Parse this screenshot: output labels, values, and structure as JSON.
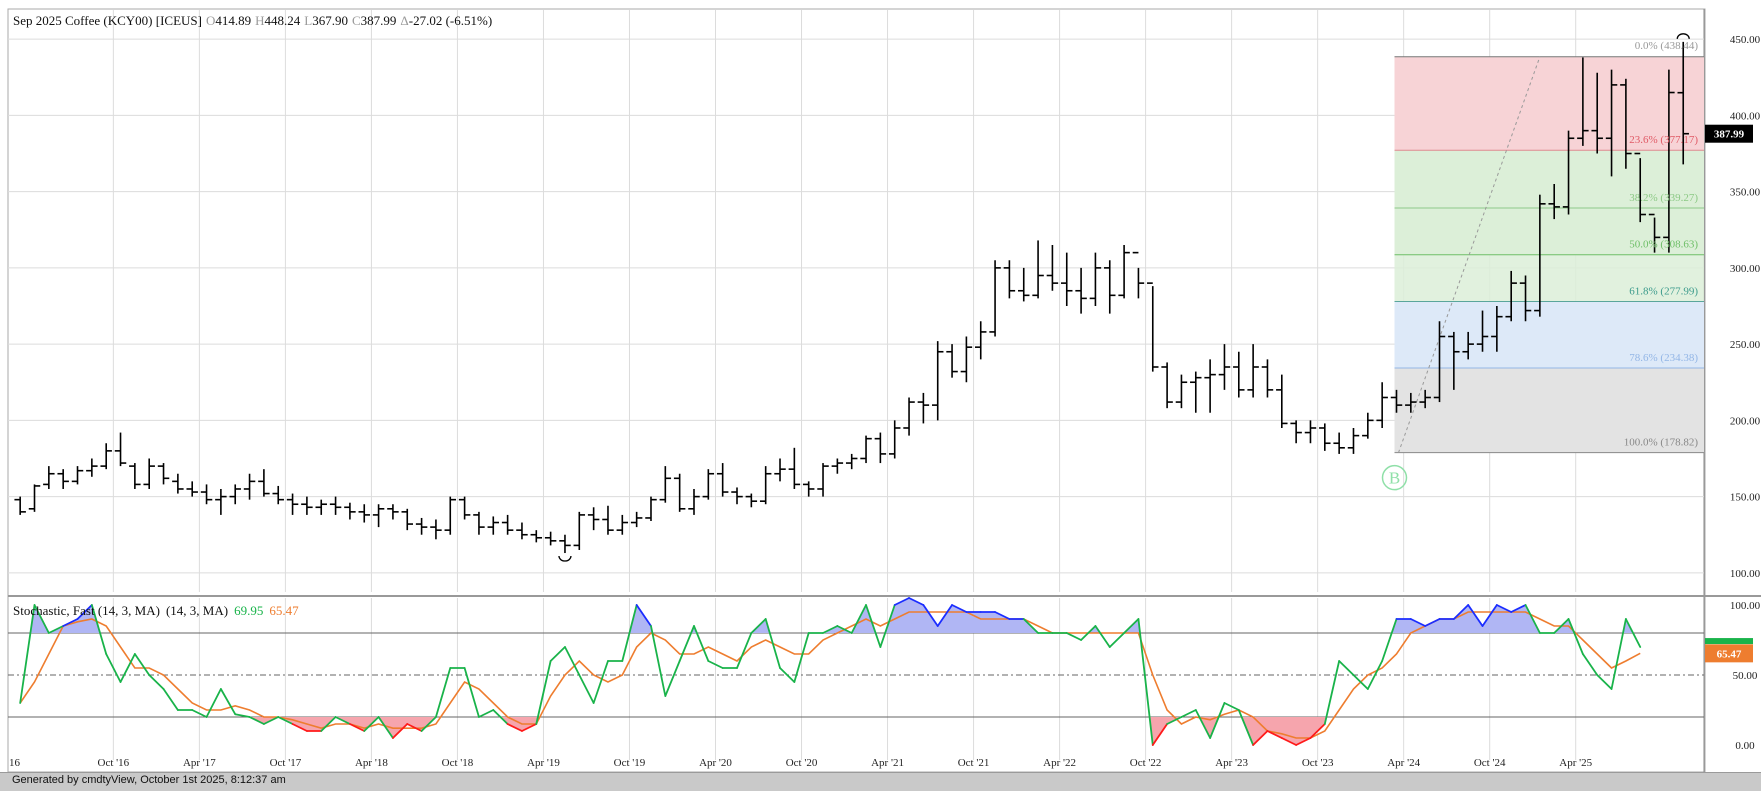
{
  "header": {
    "symbol_title": "Sep 2025 Coffee (KCY00) [ICEUS]",
    "open_label": "O",
    "open": "414.89",
    "high_label": "H",
    "high": "448.24",
    "low_label": "L",
    "low": "367.90",
    "close_label": "C",
    "close": "387.99",
    "change_label": "Δ",
    "change": "-27.02 (-6.51%)"
  },
  "footer": {
    "text": "Generated by cmdtyView, October 1st 2025, 8:12:37 am"
  },
  "colors": {
    "price_bars": "#000000",
    "grid": "#dcdcdc",
    "fib_red_zone": "#f7d3d6",
    "fib_green_zone": "#dcefd8",
    "fib_blue_zone": "#dde9f8",
    "fib_gray_zone": "#e3e3e3",
    "stoch_fast": "#19b34a",
    "stoch_slow": "#ee7d2f",
    "overbought_fill": "#b0b6f4",
    "oversold_fill": "#f6a5ad",
    "above_fast": "#1b2dff",
    "below_fast": "#ff1a1a",
    "last_price_tag": "#000000",
    "stoch_tag": "#ee7d2f"
  },
  "chart_data": [
    {
      "type": "ohlc",
      "title": "Sep 2025 Coffee (KCY00) [ICEUS]",
      "period": "monthly",
      "x_tick_labels": [
        "16",
        "Oct '16",
        "Apr '17",
        "Oct '17",
        "Apr '18",
        "Oct '18",
        "Apr '19",
        "Oct '19",
        "Apr '20",
        "Oct '20",
        "Apr '21",
        "Oct '21",
        "Apr '22",
        "Oct '22",
        "Apr '23",
        "Oct '23",
        "Apr '24",
        "Oct '24",
        "Apr '25"
      ],
      "y_ticks": [
        "100.00",
        "150.00",
        "200.00",
        "250.00",
        "300.00",
        "350.00",
        "400.00",
        "450.00"
      ],
      "ylim": [
        94,
        456
      ],
      "last_price": "387.99",
      "start": "2016-03",
      "bars": [
        [
          148,
          150,
          138,
          140
        ],
        [
          142,
          158,
          140,
          157
        ],
        [
          158,
          170,
          155,
          165
        ],
        [
          165,
          168,
          155,
          160
        ],
        [
          160,
          170,
          158,
          167
        ],
        [
          167,
          175,
          163,
          170
        ],
        [
          170,
          185,
          168,
          180
        ],
        [
          180,
          192,
          170,
          172
        ],
        [
          170,
          172,
          155,
          158
        ],
        [
          158,
          175,
          155,
          170
        ],
        [
          170,
          172,
          158,
          162
        ],
        [
          160,
          165,
          152,
          155
        ],
        [
          155,
          160,
          150,
          153
        ],
        [
          153,
          158,
          145,
          148
        ],
        [
          148,
          155,
          138,
          150
        ],
        [
          150,
          158,
          145,
          155
        ],
        [
          155,
          165,
          148,
          160
        ],
        [
          160,
          168,
          150,
          152
        ],
        [
          152,
          157,
          145,
          148
        ],
        [
          148,
          152,
          138,
          145
        ],
        [
          145,
          150,
          138,
          143
        ],
        [
          143,
          148,
          138,
          145
        ],
        [
          145,
          150,
          138,
          143
        ],
        [
          143,
          146,
          135,
          140
        ],
        [
          140,
          145,
          133,
          138
        ],
        [
          138,
          145,
          130,
          142
        ],
        [
          142,
          145,
          135,
          140
        ],
        [
          140,
          142,
          128,
          132
        ],
        [
          132,
          136,
          125,
          130
        ],
        [
          130,
          135,
          122,
          128
        ],
        [
          128,
          150,
          125,
          148
        ],
        [
          148,
          150,
          135,
          138
        ],
        [
          138,
          140,
          125,
          130
        ],
        [
          130,
          137,
          125,
          133
        ],
        [
          133,
          138,
          125,
          128
        ],
        [
          128,
          133,
          122,
          125
        ],
        [
          125,
          128,
          120,
          123
        ],
        [
          123,
          127,
          118,
          121
        ],
        [
          121,
          125,
          113,
          118
        ],
        [
          118,
          140,
          115,
          138
        ],
        [
          138,
          143,
          128,
          135
        ],
        [
          135,
          144,
          125,
          128
        ],
        [
          128,
          138,
          125,
          133
        ],
        [
          133,
          140,
          130,
          136
        ],
        [
          136,
          150,
          134,
          148
        ],
        [
          148,
          170,
          146,
          162
        ],
        [
          162,
          165,
          140,
          142
        ],
        [
          142,
          155,
          138,
          150
        ],
        [
          150,
          168,
          148,
          165
        ],
        [
          165,
          172,
          150,
          153
        ],
        [
          153,
          156,
          145,
          150
        ],
        [
          150,
          152,
          143,
          147
        ],
        [
          147,
          170,
          145,
          165
        ],
        [
          165,
          175,
          160,
          168
        ],
        [
          168,
          182,
          155,
          158
        ],
        [
          158,
          160,
          150,
          155
        ],
        [
          155,
          172,
          150,
          170
        ],
        [
          170,
          175,
          165,
          172
        ],
        [
          172,
          178,
          168,
          175
        ],
        [
          175,
          190,
          172,
          188
        ],
        [
          188,
          192,
          172,
          178
        ],
        [
          178,
          200,
          175,
          195
        ],
        [
          195,
          215,
          190,
          212
        ],
        [
          212,
          218,
          198,
          210
        ],
        [
          210,
          252,
          200,
          245
        ],
        [
          245,
          250,
          228,
          232
        ],
        [
          232,
          255,
          225,
          248
        ],
        [
          248,
          265,
          240,
          258
        ],
        [
          258,
          305,
          255,
          300
        ],
        [
          300,
          305,
          280,
          285
        ],
        [
          285,
          300,
          278,
          282
        ],
        [
          282,
          318,
          280,
          295
        ],
        [
          295,
          315,
          285,
          290
        ],
        [
          290,
          310,
          275,
          285
        ],
        [
          285,
          300,
          270,
          280
        ],
        [
          280,
          310,
          275,
          300
        ],
        [
          300,
          305,
          270,
          282
        ],
        [
          282,
          315,
          280,
          310
        ],
        [
          310,
          300,
          280,
          290
        ],
        [
          290,
          288,
          232,
          235
        ],
        [
          235,
          238,
          208,
          212
        ],
        [
          212,
          230,
          208,
          225
        ],
        [
          225,
          232,
          205,
          228
        ],
        [
          228,
          240,
          205,
          230
        ],
        [
          230,
          250,
          220,
          235
        ],
        [
          235,
          245,
          215,
          220
        ],
        [
          220,
          250,
          215,
          235
        ],
        [
          235,
          240,
          215,
          220
        ],
        [
          220,
          230,
          195,
          198
        ],
        [
          198,
          200,
          185,
          192
        ],
        [
          192,
          200,
          185,
          195
        ],
        [
          195,
          198,
          180,
          185
        ],
        [
          185,
          192,
          178,
          182
        ],
        [
          182,
          195,
          178,
          190
        ],
        [
          190,
          205,
          188,
          200
        ],
        [
          200,
          225,
          195,
          215
        ],
        [
          215,
          220,
          205,
          210
        ],
        [
          210,
          218,
          205,
          212
        ],
        [
          212,
          220,
          208,
          215
        ],
        [
          215,
          265,
          212,
          255
        ],
        [
          255,
          258,
          220,
          245
        ],
        [
          245,
          258,
          240,
          250
        ],
        [
          250,
          272,
          245,
          255
        ],
        [
          255,
          275,
          245,
          268
        ],
        [
          268,
          298,
          265,
          290
        ],
        [
          290,
          295,
          265,
          272
        ],
        [
          272,
          348,
          268,
          342
        ],
        [
          342,
          355,
          332,
          340
        ],
        [
          340,
          390,
          335,
          385
        ],
        [
          385,
          438,
          380,
          390
        ],
        [
          390,
          428,
          375,
          385
        ],
        [
          385,
          430,
          360,
          420
        ],
        [
          420,
          424,
          365,
          375
        ],
        [
          375,
          372,
          330,
          335
        ],
        [
          335,
          333,
          310,
          320
        ],
        [
          320,
          430,
          310,
          415
        ],
        [
          414.89,
          448.24,
          367.9,
          387.99
        ]
      ]
    },
    {
      "type": "fibonacci_retracement",
      "levels": [
        {
          "label": "0.0%",
          "value": "(438.44)",
          "price": 438.44
        },
        {
          "label": "23.6%",
          "value": "(377.17)",
          "price": 377.17
        },
        {
          "label": "38.2%",
          "value": "(339.27)",
          "price": 339.27
        },
        {
          "label": "50.0%",
          "value": "(308.63)",
          "price": 308.63
        },
        {
          "label": "61.8%",
          "value": "(277.99)",
          "price": 277.99
        },
        {
          "label": "78.6%",
          "value": "(234.38)",
          "price": 234.38
        },
        {
          "label": "100.0%",
          "value": "(178.82)",
          "price": 178.82
        }
      ],
      "anchor_low": 178.82,
      "anchor_high": 438.44,
      "marker": "B"
    },
    {
      "type": "line",
      "title": "Stochastic, Fast (14, 3, MA)",
      "params": "(14, 3, MA)",
      "fast_value": "69.95",
      "slow_value": "65.47",
      "y_ticks": [
        "0.00",
        "50.00",
        "100.00"
      ],
      "ylim": [
        -5,
        105
      ],
      "overbought": 80,
      "oversold": 20,
      "midline": 50,
      "series": [
        {
          "name": "%K",
          "values": [
            30,
            100,
            80,
            85,
            90,
            100,
            65,
            45,
            65,
            50,
            40,
            25,
            25,
            20,
            40,
            22,
            20,
            15,
            20,
            15,
            10,
            10,
            20,
            15,
            10,
            20,
            5,
            15,
            10,
            20,
            55,
            55,
            20,
            25,
            15,
            10,
            15,
            60,
            70,
            50,
            30,
            60,
            60,
            100,
            85,
            35,
            60,
            85,
            60,
            55,
            55,
            80,
            90,
            55,
            45,
            80,
            80,
            85,
            80,
            100,
            70,
            100,
            105,
            100,
            85,
            100,
            95,
            95,
            95,
            90,
            90,
            80,
            80,
            80,
            75,
            85,
            70,
            80,
            90,
            0,
            15,
            20,
            25,
            5,
            30,
            25,
            0,
            10,
            5,
            0,
            5,
            15,
            60,
            50,
            40,
            60,
            90,
            90,
            85,
            90,
            90,
            100,
            85,
            100,
            95,
            100,
            80,
            80,
            90,
            65,
            50,
            40,
            90,
            70
          ]
        },
        {
          "name": "%D",
          "values": [
            30,
            45,
            65,
            85,
            88,
            90,
            85,
            70,
            55,
            55,
            50,
            40,
            30,
            25,
            25,
            28,
            25,
            20,
            20,
            18,
            15,
            12,
            15,
            15,
            12,
            15,
            12,
            12,
            12,
            15,
            30,
            45,
            40,
            30,
            20,
            15,
            15,
            35,
            50,
            60,
            50,
            45,
            50,
            70,
            80,
            75,
            65,
            65,
            70,
            65,
            60,
            70,
            75,
            70,
            65,
            65,
            75,
            80,
            85,
            90,
            85,
            90,
            95,
            95,
            95,
            95,
            95,
            90,
            90,
            90,
            90,
            85,
            80,
            80,
            80,
            80,
            80,
            80,
            80,
            50,
            25,
            15,
            20,
            18,
            22,
            25,
            20,
            10,
            8,
            5,
            5,
            10,
            25,
            40,
            50,
            55,
            65,
            80,
            85,
            90,
            90,
            95,
            95,
            95,
            95,
            95,
            90,
            85,
            85,
            75,
            65,
            55,
            60,
            65.47
          ]
        }
      ]
    }
  ]
}
